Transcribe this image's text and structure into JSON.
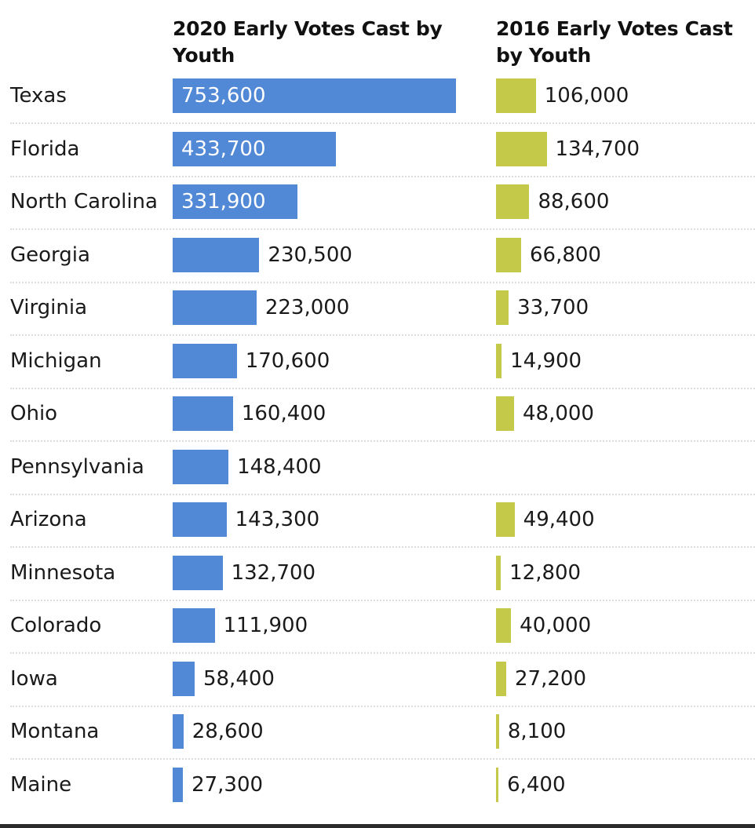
{
  "chart_data": {
    "type": "bar",
    "orientation": "horizontal",
    "categories": [
      "Texas",
      "Florida",
      "North Carolina",
      "Georgia",
      "Virginia",
      "Michigan",
      "Ohio",
      "Pennsylvania",
      "Arizona",
      "Minnesota",
      "Colorado",
      "Iowa",
      "Montana",
      "Maine"
    ],
    "series": [
      {
        "name": "2020 Early Votes Cast by Youth",
        "color": "#5289d6",
        "values": [
          753600,
          433700,
          331900,
          230500,
          223000,
          170600,
          160400,
          148400,
          143300,
          132700,
          111900,
          58400,
          28600,
          27300
        ],
        "labels": [
          "753,600",
          "433,700",
          "331,900",
          "230,500",
          "223,000",
          "170,600",
          "160,400",
          "148,400",
          "143,300",
          "132,700",
          "111,900",
          "58,400",
          "28,600",
          "27,300"
        ]
      },
      {
        "name": "2016 Early Votes Cast by Youth",
        "color": "#c4c94a",
        "values": [
          106000,
          134700,
          88600,
          66800,
          33700,
          14900,
          48000,
          null,
          49400,
          12800,
          40000,
          27200,
          8100,
          6400
        ],
        "labels": [
          "106,000",
          "134,700",
          "88,600",
          "66,800",
          "33,700",
          "14,900",
          "48,000",
          "",
          "49,400",
          "12,800",
          "40,000",
          "27,200",
          "8,100",
          "6,400"
        ]
      }
    ],
    "title": "",
    "xlabel": "",
    "ylabel": "",
    "grid": false,
    "legend": "none"
  },
  "headers": {
    "col2020": "2020 Early Votes Cast by Youth",
    "col2016": "2016 Early Votes Cast by Youth"
  }
}
